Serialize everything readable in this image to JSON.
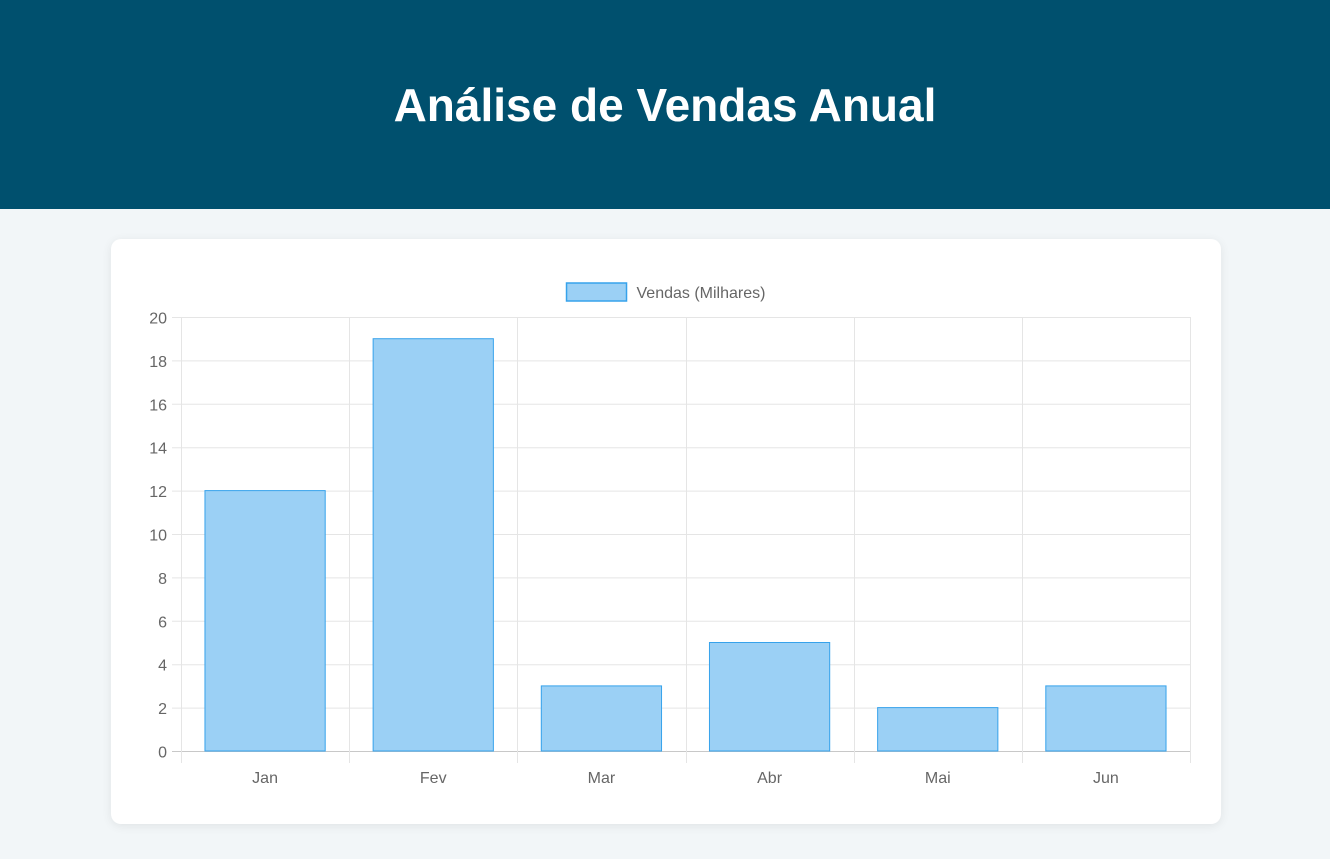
{
  "header": {
    "title": "Análise de Vendas Anual"
  },
  "chart_data": {
    "type": "bar",
    "categories": [
      "Jan",
      "Fev",
      "Mar",
      "Abr",
      "Mai",
      "Jun"
    ],
    "series": [
      {
        "name": "Vendas (Milhares)",
        "values": [
          12,
          19,
          3,
          5,
          2,
          3
        ]
      }
    ],
    "ylim": [
      0,
      20
    ],
    "yticks": [
      0,
      2,
      4,
      6,
      8,
      10,
      12,
      14,
      16,
      18,
      20
    ],
    "grid": true,
    "legend_position": "top-center",
    "colors": {
      "bar_fill": "#9bd0f5",
      "bar_border": "#36a2eb",
      "grid": "#e5e5e5",
      "axis": "#c8c8c8",
      "text": "#666666"
    }
  }
}
